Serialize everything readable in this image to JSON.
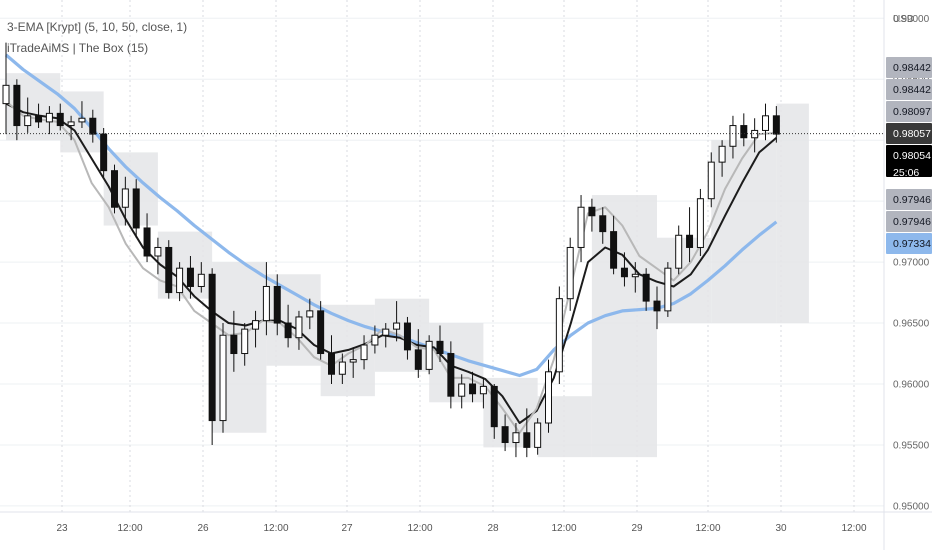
{
  "indicators": [
    {
      "label": "3-EMA [Krypt] (5, 10, 50, close, 1)"
    },
    {
      "label": "iTradeAiMS | The Box (15)"
    }
  ],
  "currency": "USD",
  "chart_data": {
    "type": "candlestick",
    "title": "",
    "xlabel": "",
    "ylabel": "USD",
    "ylim": [
      0.9495,
      0.9915
    ],
    "y_ticks": [
      "0.95000",
      "0.95500",
      "0.96000",
      "0.96500",
      "0.97000",
      "0.97500",
      "0.98000",
      "0.98500",
      "0.99000"
    ],
    "x_ticks": [
      "23",
      "12:00",
      "26",
      "12:00",
      "27",
      "12:00",
      "28",
      "12:00",
      "29",
      "12:00",
      "30",
      "12:00"
    ],
    "price_labels": [
      {
        "text": "0.98442",
        "price": 0.98442,
        "style": "gray"
      },
      {
        "text": "0.98442",
        "price": 0.98442,
        "style": "gray"
      },
      {
        "text": "0.98097",
        "price": 0.98097,
        "style": "gray"
      },
      {
        "text": "0.98057",
        "price": 0.98057,
        "style": "dark"
      },
      {
        "text": "0.98054",
        "price": 0.98054,
        "style": "black"
      },
      {
        "text": "25:06",
        "price": 0.98054,
        "style": "black"
      },
      {
        "text": "0.97946",
        "price": 0.97946,
        "style": "gray"
      },
      {
        "text": "0.97946",
        "price": 0.97946,
        "style": "gray"
      },
      {
        "text": "0.97334",
        "price": 0.97334,
        "style": "blue"
      }
    ],
    "series": [
      {
        "name": "EMA 5",
        "color": "#b8b8b8",
        "values": [
          0.9832,
          0.982,
          0.9817,
          0.9815,
          0.98,
          0.9765,
          0.9745,
          0.9715,
          0.9695,
          0.9685,
          0.968,
          0.966,
          0.965,
          0.964,
          0.9642,
          0.9652,
          0.965,
          0.9638,
          0.9622,
          0.9615,
          0.9625,
          0.9632,
          0.9645,
          0.964,
          0.963,
          0.9628,
          0.9605,
          0.9605,
          0.9598,
          0.958,
          0.956,
          0.958,
          0.962,
          0.968,
          0.974,
          0.9745,
          0.973,
          0.9705,
          0.9695,
          0.9685,
          0.97,
          0.9725,
          0.976,
          0.9785,
          0.9805,
          0.9806
        ]
      },
      {
        "name": "EMA 10",
        "color": "#1c1c1c",
        "values": [
          0.983,
          0.9823,
          0.982,
          0.9818,
          0.9808,
          0.9785,
          0.9762,
          0.9735,
          0.9712,
          0.9698,
          0.9688,
          0.9672,
          0.966,
          0.965,
          0.9648,
          0.9652,
          0.9652,
          0.9645,
          0.9632,
          0.9625,
          0.9628,
          0.9633,
          0.964,
          0.9638,
          0.9632,
          0.963,
          0.9615,
          0.961,
          0.9604,
          0.959,
          0.9568,
          0.9578,
          0.9605,
          0.965,
          0.97,
          0.9712,
          0.9706,
          0.969,
          0.9684,
          0.968,
          0.969,
          0.971,
          0.9738,
          0.9765,
          0.979,
          0.9802
        ]
      },
      {
        "name": "EMA 50",
        "color": "#8db8ec",
        "values": [
          0.987,
          0.9858,
          0.9848,
          0.9838,
          0.9826,
          0.981,
          0.9793,
          0.9778,
          0.9765,
          0.9753,
          0.9742,
          0.973,
          0.9719,
          0.9708,
          0.9698,
          0.9689,
          0.9681,
          0.9673,
          0.9665,
          0.9658,
          0.9652,
          0.9647,
          0.9643,
          0.9639,
          0.9634,
          0.9629,
          0.9624,
          0.9619,
          0.9615,
          0.9611,
          0.9607,
          0.9612,
          0.9628,
          0.964,
          0.965,
          0.9656,
          0.966,
          0.9661,
          0.9662,
          0.9666,
          0.9674,
          0.9685,
          0.9697,
          0.971,
          0.9722,
          0.9733
        ]
      }
    ],
    "candles": [
      {
        "o": 0.983,
        "h": 0.988,
        "l": 0.9805,
        "c": 0.9845
      },
      {
        "o": 0.9845,
        "h": 0.985,
        "l": 0.98,
        "c": 0.9812
      },
      {
        "o": 0.9812,
        "h": 0.9835,
        "l": 0.9806,
        "c": 0.982
      },
      {
        "o": 0.982,
        "h": 0.983,
        "l": 0.981,
        "c": 0.9815
      },
      {
        "o": 0.9815,
        "h": 0.9828,
        "l": 0.9805,
        "c": 0.9822
      },
      {
        "o": 0.9822,
        "h": 0.983,
        "l": 0.9808,
        "c": 0.9812
      },
      {
        "o": 0.9812,
        "h": 0.982,
        "l": 0.98,
        "c": 0.9815
      },
      {
        "o": 0.9815,
        "h": 0.9832,
        "l": 0.981,
        "c": 0.9818
      },
      {
        "o": 0.9818,
        "h": 0.9825,
        "l": 0.9798,
        "c": 0.9805
      },
      {
        "o": 0.9805,
        "h": 0.981,
        "l": 0.977,
        "c": 0.9775
      },
      {
        "o": 0.9775,
        "h": 0.978,
        "l": 0.974,
        "c": 0.9745
      },
      {
        "o": 0.9745,
        "h": 0.977,
        "l": 0.973,
        "c": 0.976
      },
      {
        "o": 0.976,
        "h": 0.9768,
        "l": 0.972,
        "c": 0.9728
      },
      {
        "o": 0.9728,
        "h": 0.974,
        "l": 0.97,
        "c": 0.9705
      },
      {
        "o": 0.9705,
        "h": 0.972,
        "l": 0.969,
        "c": 0.9712
      },
      {
        "o": 0.9712,
        "h": 0.9718,
        "l": 0.967,
        "c": 0.9675
      },
      {
        "o": 0.9675,
        "h": 0.97,
        "l": 0.9668,
        "c": 0.9695
      },
      {
        "o": 0.9695,
        "h": 0.9705,
        "l": 0.967,
        "c": 0.968
      },
      {
        "o": 0.968,
        "h": 0.97,
        "l": 0.9675,
        "c": 0.969
      },
      {
        "o": 0.969,
        "h": 0.9695,
        "l": 0.955,
        "c": 0.957
      },
      {
        "o": 0.957,
        "h": 0.965,
        "l": 0.956,
        "c": 0.964
      },
      {
        "o": 0.964,
        "h": 0.966,
        "l": 0.961,
        "c": 0.9625
      },
      {
        "o": 0.9625,
        "h": 0.965,
        "l": 0.9615,
        "c": 0.9645
      },
      {
        "o": 0.9645,
        "h": 0.966,
        "l": 0.963,
        "c": 0.9652
      },
      {
        "o": 0.9652,
        "h": 0.97,
        "l": 0.964,
        "c": 0.968
      },
      {
        "o": 0.968,
        "h": 0.969,
        "l": 0.964,
        "c": 0.965
      },
      {
        "o": 0.965,
        "h": 0.9665,
        "l": 0.963,
        "c": 0.9638
      },
      {
        "o": 0.9638,
        "h": 0.966,
        "l": 0.9628,
        "c": 0.9655
      },
      {
        "o": 0.9655,
        "h": 0.967,
        "l": 0.9645,
        "c": 0.966
      },
      {
        "o": 0.966,
        "h": 0.9668,
        "l": 0.962,
        "c": 0.9625
      },
      {
        "o": 0.9625,
        "h": 0.964,
        "l": 0.96,
        "c": 0.9608
      },
      {
        "o": 0.9608,
        "h": 0.9625,
        "l": 0.96,
        "c": 0.9618
      },
      {
        "o": 0.9618,
        "h": 0.963,
        "l": 0.9605,
        "c": 0.962
      },
      {
        "o": 0.962,
        "h": 0.964,
        "l": 0.9612,
        "c": 0.9632
      },
      {
        "o": 0.9632,
        "h": 0.9648,
        "l": 0.9625,
        "c": 0.964
      },
      {
        "o": 0.964,
        "h": 0.965,
        "l": 0.963,
        "c": 0.9645
      },
      {
        "o": 0.9645,
        "h": 0.9668,
        "l": 0.9635,
        "c": 0.965
      },
      {
        "o": 0.965,
        "h": 0.9655,
        "l": 0.962,
        "c": 0.9628
      },
      {
        "o": 0.9628,
        "h": 0.9645,
        "l": 0.9605,
        "c": 0.9612
      },
      {
        "o": 0.9612,
        "h": 0.964,
        "l": 0.9608,
        "c": 0.9635
      },
      {
        "o": 0.9635,
        "h": 0.9648,
        "l": 0.9618,
        "c": 0.9625
      },
      {
        "o": 0.9625,
        "h": 0.9635,
        "l": 0.958,
        "c": 0.959
      },
      {
        "o": 0.959,
        "h": 0.9608,
        "l": 0.958,
        "c": 0.96
      },
      {
        "o": 0.96,
        "h": 0.961,
        "l": 0.9585,
        "c": 0.9592
      },
      {
        "o": 0.9592,
        "h": 0.9605,
        "l": 0.958,
        "c": 0.9598
      },
      {
        "o": 0.9598,
        "h": 0.96,
        "l": 0.9555,
        "c": 0.9565
      },
      {
        "o": 0.9565,
        "h": 0.9575,
        "l": 0.9545,
        "c": 0.9552
      },
      {
        "o": 0.9552,
        "h": 0.9568,
        "l": 0.954,
        "c": 0.956
      },
      {
        "o": 0.956,
        "h": 0.958,
        "l": 0.954,
        "c": 0.9548
      },
      {
        "o": 0.9548,
        "h": 0.9572,
        "l": 0.9542,
        "c": 0.9568
      },
      {
        "o": 0.9568,
        "h": 0.962,
        "l": 0.956,
        "c": 0.961
      },
      {
        "o": 0.961,
        "h": 0.968,
        "l": 0.96,
        "c": 0.967
      },
      {
        "o": 0.967,
        "h": 0.972,
        "l": 0.966,
        "c": 0.9712
      },
      {
        "o": 0.9712,
        "h": 0.9755,
        "l": 0.97,
        "c": 0.9745
      },
      {
        "o": 0.9745,
        "h": 0.9752,
        "l": 0.9725,
        "c": 0.9738
      },
      {
        "o": 0.9738,
        "h": 0.9745,
        "l": 0.9715,
        "c": 0.9725
      },
      {
        "o": 0.9725,
        "h": 0.9738,
        "l": 0.969,
        "c": 0.9695
      },
      {
        "o": 0.9695,
        "h": 0.9708,
        "l": 0.968,
        "c": 0.9688
      },
      {
        "o": 0.9688,
        "h": 0.97,
        "l": 0.9675,
        "c": 0.969
      },
      {
        "o": 0.969,
        "h": 0.9695,
        "l": 0.966,
        "c": 0.9668
      },
      {
        "o": 0.9668,
        "h": 0.968,
        "l": 0.9645,
        "c": 0.966
      },
      {
        "o": 0.966,
        "h": 0.97,
        "l": 0.9655,
        "c": 0.9695
      },
      {
        "o": 0.9695,
        "h": 0.973,
        "l": 0.969,
        "c": 0.9722
      },
      {
        "o": 0.9722,
        "h": 0.9745,
        "l": 0.97,
        "c": 0.9712
      },
      {
        "o": 0.9712,
        "h": 0.976,
        "l": 0.9705,
        "c": 0.9752
      },
      {
        "o": 0.9752,
        "h": 0.979,
        "l": 0.9745,
        "c": 0.9782
      },
      {
        "o": 0.9782,
        "h": 0.98,
        "l": 0.977,
        "c": 0.9795
      },
      {
        "o": 0.9795,
        "h": 0.982,
        "l": 0.9785,
        "c": 0.9812
      },
      {
        "o": 0.9812,
        "h": 0.9822,
        "l": 0.9795,
        "c": 0.9802
      },
      {
        "o": 0.9802,
        "h": 0.9818,
        "l": 0.979,
        "c": 0.9808
      },
      {
        "o": 0.9808,
        "h": 0.983,
        "l": 0.98,
        "c": 0.982
      },
      {
        "o": 0.982,
        "h": 0.9828,
        "l": 0.9798,
        "c": 0.9805
      }
    ],
    "boxes": [
      {
        "i0": 0,
        "i1": 5,
        "top": 0.9855,
        "bottom": 0.98
      },
      {
        "i0": 5,
        "i1": 9,
        "top": 0.984,
        "bottom": 0.979
      },
      {
        "i0": 9,
        "i1": 14,
        "top": 0.979,
        "bottom": 0.973
      },
      {
        "i0": 14,
        "i1": 19,
        "top": 0.9725,
        "bottom": 0.967
      },
      {
        "i0": 19,
        "i1": 24,
        "top": 0.97,
        "bottom": 0.956
      },
      {
        "i0": 24,
        "i1": 29,
        "top": 0.969,
        "bottom": 0.9615
      },
      {
        "i0": 29,
        "i1": 34,
        "top": 0.9665,
        "bottom": 0.959
      },
      {
        "i0": 34,
        "i1": 39,
        "top": 0.967,
        "bottom": 0.961
      },
      {
        "i0": 39,
        "i1": 44,
        "top": 0.965,
        "bottom": 0.9585
      },
      {
        "i0": 44,
        "i1": 49,
        "top": 0.9605,
        "bottom": 0.9548
      },
      {
        "i0": 49,
        "i1": 54,
        "top": 0.959,
        "bottom": 0.954
      },
      {
        "i0": 54,
        "i1": 60,
        "top": 0.9755,
        "bottom": 0.954
      },
      {
        "i0": 60,
        "i1": 65,
        "top": 0.972,
        "bottom": 0.965
      },
      {
        "i0": 65,
        "i1": 71,
        "top": 0.98,
        "bottom": 0.965
      },
      {
        "i0": 71,
        "i1": 74,
        "top": 0.983,
        "bottom": 0.965
      }
    ],
    "grid": true,
    "legend_position": "top-left"
  }
}
